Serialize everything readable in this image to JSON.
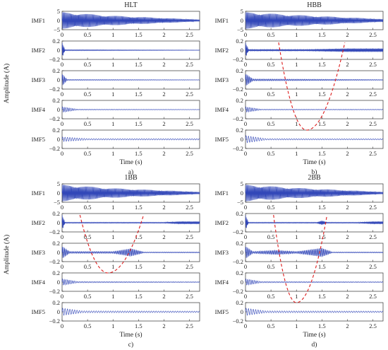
{
  "figure": {
    "ylabel": "Amplitude (A)",
    "xlabel": "Time (s)"
  },
  "chart_data": [
    {
      "type": "line",
      "title": "HLT",
      "caption": "a)",
      "xlabel": "Time (s)",
      "ylabel": "Amplitude (A)",
      "xlim": [
        0,
        2.7
      ],
      "xticks": [
        "0",
        "0.5",
        "1",
        "1.5",
        "2",
        "2.5"
      ],
      "panels": [
        {
          "name": "IMF1",
          "ylim": [
            -5,
            5
          ],
          "yticks": [
            "5",
            "0",
            "−5"
          ],
          "envelope": [
            {
              "t": 0,
              "a": 4.5
            },
            {
              "t": 1,
              "a": 2.6
            },
            {
              "t": 2.7,
              "a": 0.5
            }
          ],
          "freq": 50
        },
        {
          "name": "IMF2",
          "ylim": [
            -0.2,
            0.2
          ],
          "yticks": [
            "0.2",
            "0",
            "−0.2"
          ],
          "envelope": [
            {
              "t": 0,
              "a": 0.18
            },
            {
              "t": 0.06,
              "a": 0.01
            },
            {
              "t": 2.7,
              "a": 0.004
            }
          ],
          "freq": 60
        },
        {
          "name": "IMF3",
          "ylim": [
            -0.2,
            0.2
          ],
          "yticks": [
            "0.2",
            "0",
            "−0.2"
          ],
          "envelope": [
            {
              "t": 0,
              "a": 0.14
            },
            {
              "t": 0.1,
              "a": 0.01
            },
            {
              "t": 2.7,
              "a": 0.005
            }
          ],
          "freq": 30
        },
        {
          "name": "IMF4",
          "ylim": [
            -0.2,
            0.2
          ],
          "yticks": [
            "0.2",
            "0",
            "−0.2"
          ],
          "envelope": [
            {
              "t": 0,
              "a": 0.06
            },
            {
              "t": 0.3,
              "a": 0.01
            },
            {
              "t": 2.7,
              "a": 0.005
            }
          ],
          "freq": 15
        },
        {
          "name": "IMF5",
          "ylim": [
            -0.2,
            0.2
          ],
          "yticks": [
            "0.2",
            "0",
            "−0.2"
          ],
          "envelope": [
            {
              "t": 0,
              "a": 0.05
            },
            {
              "t": 0.5,
              "a": 0.015
            },
            {
              "t": 2.7,
              "a": 0.015
            }
          ],
          "freq": 6
        }
      ],
      "trend": null
    },
    {
      "type": "line",
      "title": "HBB",
      "caption": "b)",
      "xlabel": "Time (s)",
      "ylabel": "Amplitude (A)",
      "xlim": [
        0,
        2.7
      ],
      "xticks": [
        "0",
        "0.5",
        "1",
        "1.5",
        "2",
        "2.5"
      ],
      "panels": [
        {
          "name": "IMF1",
          "ylim": [
            -5,
            5
          ],
          "yticks": [
            "5",
            "0",
            "−5"
          ],
          "envelope": [
            {
              "t": 0,
              "a": 4.5
            },
            {
              "t": 1,
              "a": 3.0
            },
            {
              "t": 2.7,
              "a": 0.8
            }
          ],
          "freq": 50
        },
        {
          "name": "IMF2",
          "ylim": [
            -0.2,
            0.2
          ],
          "yticks": [
            "0.2",
            "0",
            "−0.2"
          ],
          "envelope": [
            {
              "t": 0,
              "a": 0.18
            },
            {
              "t": 0.06,
              "a": 0.02
            },
            {
              "t": 1.2,
              "a": 0.02
            },
            {
              "t": 2.0,
              "a": 0.04
            },
            {
              "t": 2.7,
              "a": 0.04
            }
          ],
          "freq": 60
        },
        {
          "name": "IMF3",
          "ylim": [
            -0.2,
            0.2
          ],
          "yticks": [
            "0.2",
            "0",
            "−0.2"
          ],
          "envelope": [
            {
              "t": 0,
              "a": 0.14
            },
            {
              "t": 0.15,
              "a": 0.02
            },
            {
              "t": 2.7,
              "a": 0.008
            }
          ],
          "freq": 30
        },
        {
          "name": "IMF4",
          "ylim": [
            -0.2,
            0.2
          ],
          "yticks": [
            "0.2",
            "0",
            "−0.2"
          ],
          "envelope": [
            {
              "t": 0,
              "a": 0.06
            },
            {
              "t": 0.3,
              "a": 0.01
            },
            {
              "t": 2.7,
              "a": 0.008
            }
          ],
          "freq": 15
        },
        {
          "name": "IMF5",
          "ylim": [
            -0.2,
            0.2
          ],
          "yticks": [
            "0.2",
            "0",
            "−0.2"
          ],
          "envelope": [
            {
              "t": 0,
              "a": 0.08
            },
            {
              "t": 0.4,
              "a": 0.015
            },
            {
              "t": 2.7,
              "a": 0.012
            }
          ],
          "freq": 6
        }
      ],
      "trend": {
        "color": "#dd1c1c",
        "t0": 0.65,
        "t1": 1.95,
        "bottom_t": 1.2,
        "top_panel": 1,
        "bottom_panel": 4
      }
    },
    {
      "type": "line",
      "title": "1BB",
      "caption": "c)",
      "xlabel": "Time (s)",
      "ylabel": "Amplitude (A)",
      "xlim": [
        0,
        2.7
      ],
      "xticks": [
        "0",
        "0.5",
        "1",
        "1.5",
        "2",
        "2.5"
      ],
      "panels": [
        {
          "name": "IMF1",
          "ylim": [
            -5,
            5
          ],
          "yticks": [
            "5",
            "0",
            "−5"
          ],
          "envelope": [
            {
              "t": 0,
              "a": 4.5
            },
            {
              "t": 1,
              "a": 2.6
            },
            {
              "t": 2.7,
              "a": 0.6
            }
          ],
          "freq": 50
        },
        {
          "name": "IMF2",
          "ylim": [
            -0.2,
            0.2
          ],
          "yticks": [
            "0.2",
            "0",
            "−0.2"
          ],
          "envelope": [
            {
              "t": 0,
              "a": 0.18
            },
            {
              "t": 0.06,
              "a": 0.01
            },
            {
              "t": 2.0,
              "a": 0.01
            },
            {
              "t": 2.3,
              "a": 0.03
            },
            {
              "t": 2.7,
              "a": 0.03
            }
          ],
          "freq": 60
        },
        {
          "name": "IMF3",
          "ylim": [
            -0.2,
            0.2
          ],
          "yticks": [
            "0.2",
            "0",
            "−0.2"
          ],
          "envelope": [
            {
              "t": 0,
              "a": 0.14
            },
            {
              "t": 0.15,
              "a": 0.02
            },
            {
              "t": 1.0,
              "a": 0.02
            },
            {
              "t": 1.35,
              "a": 0.09
            },
            {
              "t": 1.6,
              "a": 0.01
            },
            {
              "t": 2.7,
              "a": 0.01
            }
          ],
          "freq": 30
        },
        {
          "name": "IMF4",
          "ylim": [
            -0.2,
            0.2
          ],
          "yticks": [
            "0.2",
            "0",
            "−0.2"
          ],
          "envelope": [
            {
              "t": 0,
              "a": 0.07
            },
            {
              "t": 0.3,
              "a": 0.015
            },
            {
              "t": 2.7,
              "a": 0.01
            }
          ],
          "freq": 15
        },
        {
          "name": "IMF5",
          "ylim": [
            -0.2,
            0.2
          ],
          "yticks": [
            "0.2",
            "0",
            "−0.2"
          ],
          "envelope": [
            {
              "t": 0,
              "a": 0.08
            },
            {
              "t": 0.4,
              "a": 0.02
            },
            {
              "t": 2.7,
              "a": 0.015
            }
          ],
          "freq": 6
        }
      ],
      "trend": {
        "color": "#dd1c1c",
        "t0": 0.35,
        "t1": 1.6,
        "bottom_t": 0.9,
        "top_panel": 1,
        "bottom_panel": 3
      }
    },
    {
      "type": "line",
      "title": "2BB",
      "caption": "d)",
      "xlabel": "Time (s)",
      "ylabel": "Amplitude (A)",
      "xlim": [
        0,
        2.7
      ],
      "xticks": [
        "0",
        "0.5",
        "1",
        "1.5",
        "2",
        "2.5"
      ],
      "panels": [
        {
          "name": "IMF1",
          "ylim": [
            -5,
            5
          ],
          "yticks": [
            "5",
            "0",
            "−5"
          ],
          "envelope": [
            {
              "t": 0,
              "a": 4.5
            },
            {
              "t": 1,
              "a": 2.8
            },
            {
              "t": 2.7,
              "a": 0.6
            }
          ],
          "freq": 50
        },
        {
          "name": "IMF2",
          "ylim": [
            -0.2,
            0.2
          ],
          "yticks": [
            "0.2",
            "0",
            "−0.2"
          ],
          "envelope": [
            {
              "t": 0,
              "a": 0.18
            },
            {
              "t": 0.06,
              "a": 0.01
            },
            {
              "t": 1.4,
              "a": 0.01
            },
            {
              "t": 1.5,
              "a": 0.05
            },
            {
              "t": 1.6,
              "a": 0.01
            },
            {
              "t": 2.2,
              "a": 0.01
            },
            {
              "t": 2.5,
              "a": 0.03
            },
            {
              "t": 2.7,
              "a": 0.03
            }
          ],
          "freq": 60
        },
        {
          "name": "IMF3",
          "ylim": [
            -0.2,
            0.2
          ],
          "yticks": [
            "0.2",
            "0",
            "−0.2"
          ],
          "envelope": [
            {
              "t": 0,
              "a": 0.14
            },
            {
              "t": 0.15,
              "a": 0.02
            },
            {
              "t": 0.6,
              "a": 0.05
            },
            {
              "t": 1.0,
              "a": 0.02
            },
            {
              "t": 1.5,
              "a": 0.1
            },
            {
              "t": 1.7,
              "a": 0.01
            },
            {
              "t": 2.7,
              "a": 0.01
            }
          ],
          "freq": 30
        },
        {
          "name": "IMF4",
          "ylim": [
            -0.2,
            0.2
          ],
          "yticks": [
            "0.2",
            "0",
            "−0.2"
          ],
          "envelope": [
            {
              "t": 0,
              "a": 0.07
            },
            {
              "t": 0.3,
              "a": 0.015
            },
            {
              "t": 2.7,
              "a": 0.01
            }
          ],
          "freq": 15
        },
        {
          "name": "IMF5",
          "ylim": [
            -0.2,
            0.2
          ],
          "yticks": [
            "0.2",
            "0",
            "−0.2"
          ],
          "envelope": [
            {
              "t": 0,
              "a": 0.08
            },
            {
              "t": 0.4,
              "a": 0.02
            },
            {
              "t": 2.7,
              "a": 0.015
            }
          ],
          "freq": 6
        }
      ],
      "trend": {
        "color": "#dd1c1c",
        "t0": 0.55,
        "t1": 1.6,
        "bottom_t": 1.0,
        "top_panel": 1,
        "bottom_panel": 4
      }
    }
  ]
}
